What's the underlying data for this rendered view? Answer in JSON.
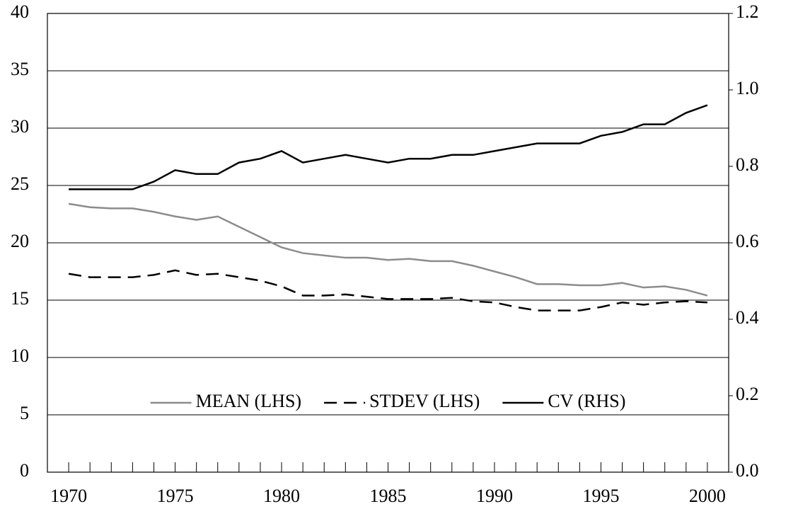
{
  "chart_data": {
    "type": "line",
    "x": [
      1970,
      1971,
      1972,
      1973,
      1974,
      1975,
      1976,
      1977,
      1978,
      1979,
      1980,
      1981,
      1982,
      1983,
      1984,
      1985,
      1986,
      1987,
      1988,
      1989,
      1990,
      1991,
      1992,
      1993,
      1994,
      1995,
      1996,
      1997,
      1998,
      1999,
      2000
    ],
    "series": [
      {
        "name": "MEAN (LHS)",
        "color": "#8c8c8c",
        "dash": false,
        "values": [
          23.4,
          23.1,
          23.0,
          23.0,
          22.7,
          22.3,
          22.0,
          22.3,
          21.4,
          20.5,
          19.6,
          19.1,
          18.9,
          18.7,
          18.7,
          18.5,
          18.6,
          18.4,
          18.4,
          18.0,
          17.5,
          17.0,
          16.4,
          16.4,
          16.3,
          16.3,
          16.5,
          16.1,
          16.2,
          15.9,
          15.4
        ]
      },
      {
        "name": "STDEV (LHS)",
        "color": "#000000",
        "dash": true,
        "values": [
          17.3,
          17.0,
          17.0,
          17.0,
          17.2,
          17.6,
          17.2,
          17.3,
          17.0,
          16.7,
          16.2,
          15.4,
          15.4,
          15.5,
          15.3,
          15.1,
          15.1,
          15.1,
          15.2,
          14.9,
          14.8,
          14.4,
          14.1,
          14.1,
          14.1,
          14.4,
          14.8,
          14.6,
          14.8,
          14.9,
          14.8
        ]
      },
      {
        "name": "CV (RHS)",
        "color": "#000000",
        "dash": false,
        "axis": "y2",
        "values": [
          0.74,
          0.74,
          0.74,
          0.74,
          0.76,
          0.79,
          0.78,
          0.78,
          0.81,
          0.82,
          0.84,
          0.81,
          0.82,
          0.83,
          0.82,
          0.81,
          0.82,
          0.82,
          0.83,
          0.83,
          0.84,
          0.85,
          0.86,
          0.86,
          0.86,
          0.88,
          0.89,
          0.91,
          0.91,
          0.94,
          0.96
        ]
      }
    ],
    "xlim": [
      1969,
      2001
    ],
    "xticks": [
      1970,
      1975,
      1980,
      1985,
      1990,
      1995,
      2000
    ],
    "x_minor_ticks": [
      1970,
      1971,
      1972,
      1973,
      1974,
      1975,
      1976,
      1977,
      1978,
      1979,
      1980,
      1981,
      1982,
      1983,
      1984,
      1985,
      1986,
      1987,
      1988,
      1989,
      1990,
      1991,
      1992,
      1993,
      1994,
      1995,
      1996,
      1997,
      1998,
      1999,
      2000
    ],
    "ylim": [
      0,
      40
    ],
    "yticks": [
      0,
      5,
      10,
      15,
      20,
      25,
      30,
      35,
      40
    ],
    "y2lim": [
      0,
      1.2
    ],
    "y2ticks": [
      {
        "value": 0,
        "label": "0.0"
      },
      0.2,
      0.4,
      0.6,
      0.8,
      {
        "value": 1,
        "label": "1.0"
      },
      1.2
    ],
    "grid": true,
    "legend": "center"
  }
}
